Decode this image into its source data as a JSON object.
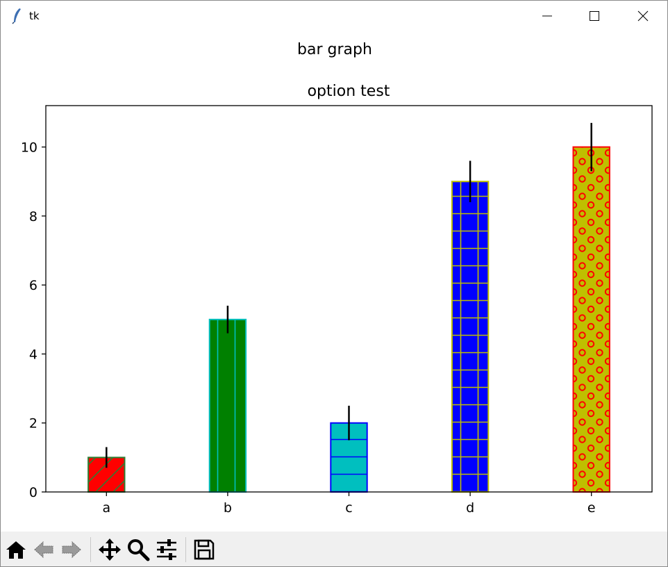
{
  "window": {
    "title": "tk",
    "app_icon": "feather-icon",
    "controls": [
      "minimize-icon",
      "maximize-icon",
      "close-icon"
    ]
  },
  "figure": {
    "suptitle": "bar graph"
  },
  "chart_data": {
    "type": "bar",
    "title": "option test",
    "xlabel": "",
    "ylabel": "",
    "categories": [
      "a",
      "b",
      "c",
      "d",
      "e"
    ],
    "values": [
      1,
      5,
      2,
      9,
      10
    ],
    "errors": [
      0.3,
      0.4,
      0.5,
      0.6,
      0.7
    ],
    "ylim": [
      0,
      11.2
    ],
    "yticks": [
      0,
      2,
      4,
      6,
      8,
      10
    ],
    "bar_width": 0.3,
    "grid": false,
    "bars": [
      {
        "face": "#ff0000",
        "edge": "#2e7d32",
        "hatch": "/"
      },
      {
        "face": "#008000",
        "edge": "#00bfbf",
        "hatch": "|"
      },
      {
        "face": "#00bfbf",
        "edge": "#0000ff",
        "hatch": "-"
      },
      {
        "face": "#0000ff",
        "edge": "#bfbf00",
        "hatch": "+"
      },
      {
        "face": "#bfbf00",
        "edge": "#ff0000",
        "hatch": "o"
      }
    ],
    "error_color": "#000000"
  },
  "toolbar": {
    "buttons": [
      {
        "name": "home-button",
        "icon": "home-icon"
      },
      {
        "name": "back-button",
        "icon": "back-arrow-icon"
      },
      {
        "name": "forward-button",
        "icon": "forward-arrow-icon"
      },
      {
        "name": "pan-button",
        "icon": "move-icon"
      },
      {
        "name": "zoom-button",
        "icon": "magnifier-icon"
      },
      {
        "name": "configure-subplots-button",
        "icon": "sliders-icon"
      },
      {
        "name": "save-button",
        "icon": "floppy-disk-icon"
      }
    ]
  }
}
